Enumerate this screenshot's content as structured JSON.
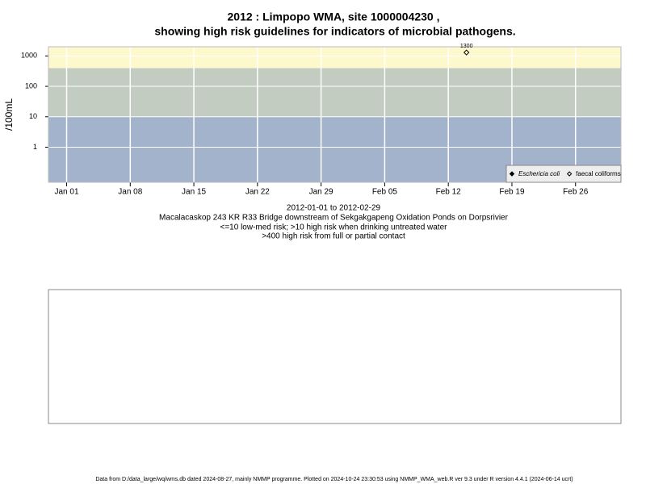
{
  "chart_data": {
    "type": "scatter",
    "title": "2012 : Limpopo WMA, site 1000004230 ,",
    "subtitle": "showing high risk guidelines for indicators of microbial pathogens.",
    "ylabel": "/100mL",
    "log_y": true,
    "grid": true,
    "legend": "bottom-right",
    "xlim": [
      "2011-12-30",
      "2012-03-02"
    ],
    "xticks": [
      {
        "value": "2012-01-01",
        "label": "Jan 01"
      },
      {
        "value": "2012-01-08",
        "label": "Jan 08"
      },
      {
        "value": "2012-01-15",
        "label": "Jan 15"
      },
      {
        "value": "2012-01-22",
        "label": "Jan 22"
      },
      {
        "value": "2012-01-29",
        "label": "Jan 29"
      },
      {
        "value": "2012-02-05",
        "label": "Feb 05"
      },
      {
        "value": "2012-02-12",
        "label": "Feb 12"
      },
      {
        "value": "2012-02-19",
        "label": "Feb 19"
      },
      {
        "value": "2012-02-26",
        "label": "Feb 26"
      }
    ],
    "ylim": [
      0.07,
      2000
    ],
    "yticks": [
      1,
      10,
      100,
      1000
    ],
    "thresholds": [
      10,
      400
    ],
    "band_colors": [
      "#a3b3cc",
      "#c3ccc0",
      "#fef9cc"
    ],
    "series": [
      {
        "name": "Eschericia coli",
        "marker": "filled",
        "color": "#000000",
        "x": [],
        "values": []
      },
      {
        "name": "faecal coliforms",
        "marker": "open",
        "color": "#000000",
        "x": [
          "2012-02-14"
        ],
        "values": [
          1300
        ]
      }
    ],
    "notes": [
      "2012-01-01 to 2012-02-29",
      "Macalacaskop 243 KR R33 Bridge downstream of Sekgakgapeng Oxidation Ponds on Dorpsrivier",
      "<=10 low-med risk; >10 high risk when drinking untreated water",
      ">400 high risk from full or partial contact"
    ],
    "footer": "Data from D:/data_large/wq/wms.db dated 2024-08-27, mainly NMMP programme. Plotted on 2024-10-24 23:30:53 using NMMP_WMA_web.R ver 9.3 under R version 4.4.1 (2024-06-14 ucrt)"
  }
}
